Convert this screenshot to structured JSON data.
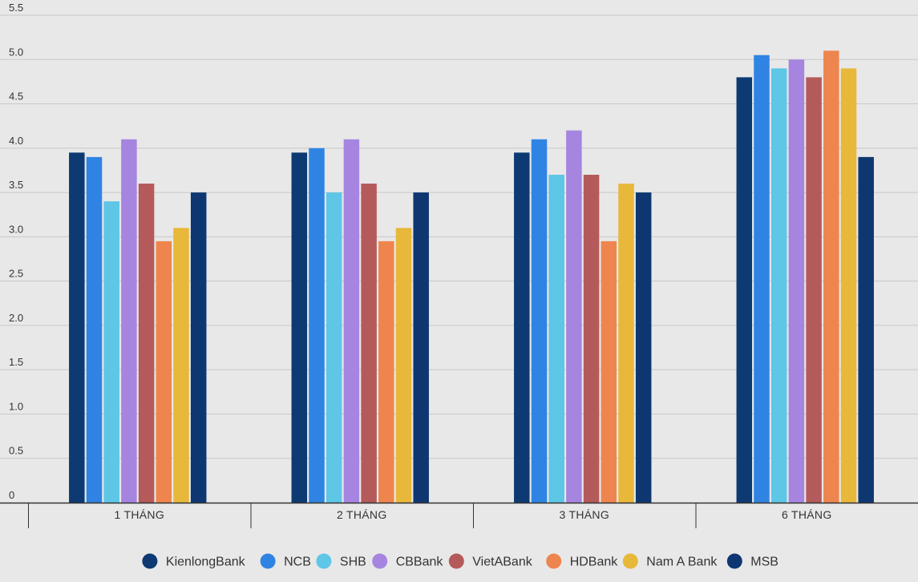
{
  "chart_data": {
    "type": "bar",
    "title": "",
    "xlabel": "",
    "ylabel": "",
    "ylim": [
      0,
      5.5
    ],
    "yticks": [
      "0",
      "0.5",
      "1.0",
      "1.5",
      "2.0",
      "2.5",
      "3.0",
      "3.5",
      "4.0",
      "4.5",
      "5.0",
      "5.5"
    ],
    "grid": true,
    "legend_position": "bottom",
    "categories": [
      "1 THÁNG",
      "2 THÁNG",
      "3 THÁNG",
      "6 THÁNG"
    ],
    "series": [
      {
        "name": "KienlongBank",
        "color": "#0d3a72",
        "values": [
          3.95,
          3.95,
          3.95,
          4.8
        ]
      },
      {
        "name": "NCB",
        "color": "#2f84e3",
        "values": [
          3.9,
          4.0,
          4.1,
          5.05
        ]
      },
      {
        "name": "SHB",
        "color": "#5ec6e6",
        "values": [
          3.4,
          3.5,
          3.7,
          4.9
        ]
      },
      {
        "name": "CBBank",
        "color": "#a585e0",
        "values": [
          4.1,
          4.1,
          4.2,
          5.0
        ]
      },
      {
        "name": "VietABank",
        "color": "#b55a5a",
        "values": [
          3.6,
          3.6,
          3.7,
          4.8
        ]
      },
      {
        "name": "HDBank",
        "color": "#ef854e",
        "values": [
          2.95,
          2.95,
          2.95,
          5.1
        ]
      },
      {
        "name": "Nam A Bank",
        "color": "#e7b83a",
        "values": [
          3.1,
          3.1,
          3.6,
          4.9
        ]
      },
      {
        "name": "MSB",
        "color": "#0e3771",
        "values": [
          3.5,
          3.5,
          3.5,
          3.9
        ]
      }
    ]
  }
}
